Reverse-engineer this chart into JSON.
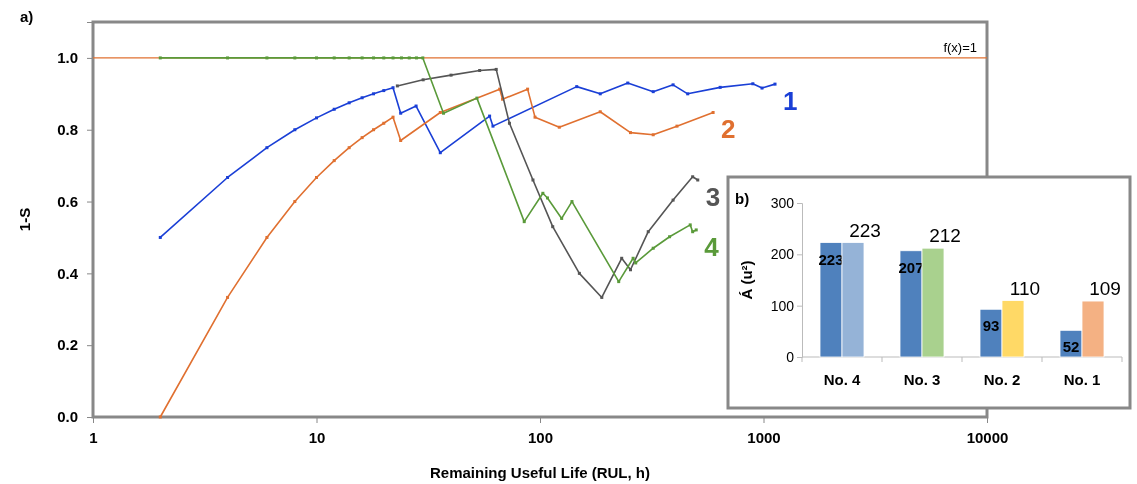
{
  "chart_data": [
    {
      "type": "line",
      "xlabel": "Remaining Useful Life (RUL, h)",
      "ylabel": "1-S",
      "log": "x",
      "xlim": [
        1,
        10000
      ],
      "xticks": [
        1,
        10,
        100,
        1000,
        10000
      ],
      "ylim": [
        0,
        1.1
      ],
      "yticks": [
        {
          "value": 0,
          "label": "0.0"
        },
        0.2,
        0.4,
        0.6,
        0.8,
        {
          "value": 1,
          "label": "1.0"
        }
      ],
      "grid": false,
      "marker": "square",
      "line_style": "solid",
      "annotations": [
        "a)"
      ],
      "ref_lines": [
        {
          "axis": "y",
          "value": 1,
          "label": "f(x)=1",
          "color": "#e07030"
        }
      ],
      "series": [
        {
          "name": "1",
          "color": "#1a3fd6",
          "x": [
            2,
            4,
            6,
            8,
            10,
            12,
            14,
            16,
            18,
            20,
            22,
            23.8,
            27.9,
            35.8,
            59.5,
            61.6,
            146,
            186,
            247,
            321,
            394,
            458,
            640,
            896,
            985,
            1126
          ],
          "values": [
            0.5,
            0.667,
            0.75,
            0.8,
            0.833,
            0.857,
            0.875,
            0.889,
            0.9,
            0.909,
            0.917,
            0.846,
            0.866,
            0.736,
            0.838,
            0.81,
            0.92,
            0.9,
            0.93,
            0.906,
            0.925,
            0.9,
            0.918,
            0.928,
            0.916,
            0.927
          ]
        },
        {
          "name": "2",
          "color": "#e07030",
          "x": [
            2,
            4,
            6,
            8,
            10,
            12,
            14,
            16,
            18,
            20,
            22,
            23.8,
            35.8,
            66,
            68,
            88,
            95,
            122,
            186,
            254,
            321,
            410,
            595
          ],
          "values": [
            0,
            0.333,
            0.5,
            0.6,
            0.667,
            0.714,
            0.75,
            0.778,
            0.8,
            0.818,
            0.835,
            0.77,
            0.848,
            0.913,
            0.885,
            0.913,
            0.835,
            0.807,
            0.85,
            0.792,
            0.786,
            0.81,
            0.848
          ]
        },
        {
          "name": "3",
          "color": "#555555",
          "x": [
            23,
            30,
            40,
            53.7,
            63.7,
            73,
            93,
            114,
            150,
            189,
            232,
            254,
            305,
            394,
            482,
            508
          ],
          "values": [
            0.922,
            0.939,
            0.952,
            0.965,
            0.968,
            0.818,
            0.66,
            0.53,
            0.4,
            0.333,
            0.442,
            0.41,
            0.516,
            0.604,
            0.669,
            0.66
          ]
        },
        {
          "name": "4",
          "color": "#5a9a3a",
          "x": [
            2,
            4,
            6,
            8,
            10,
            12,
            14,
            16,
            18,
            20,
            22,
            24,
            26,
            28,
            29.9,
            37,
            52.2,
            85,
            103,
            108,
            125,
            139,
            225,
            261,
            268,
            321,
            380,
            470,
            482,
            500
          ],
          "values": [
            1,
            1,
            1,
            1,
            1,
            1,
            1,
            1,
            1,
            1,
            1,
            1,
            1,
            1,
            1,
            0.846,
            0.888,
            0.544,
            0.623,
            0.61,
            0.553,
            0.6,
            0.377,
            0.442,
            0.429,
            0.47,
            0.502,
            0.535,
            0.516,
            0.521
          ]
        }
      ]
    },
    {
      "type": "bar",
      "ylabel": "Á (u²)",
      "categories": [
        "No. 4",
        "No. 3",
        "No. 2",
        "No. 1"
      ],
      "ylim": [
        0,
        300
      ],
      "yticks": [
        0,
        100,
        200,
        300
      ],
      "grid": false,
      "data_labels": true,
      "annotations": [
        "b)"
      ],
      "series": [
        {
          "color": "#4f81bd",
          "values": [
            223,
            207,
            93,
            52
          ]
        },
        {
          "colors": [
            "#95b3d7",
            "#a9d18e",
            "#ffd966",
            "#f4b183"
          ],
          "values": [
            223,
            212,
            110,
            109
          ]
        }
      ]
    }
  ]
}
